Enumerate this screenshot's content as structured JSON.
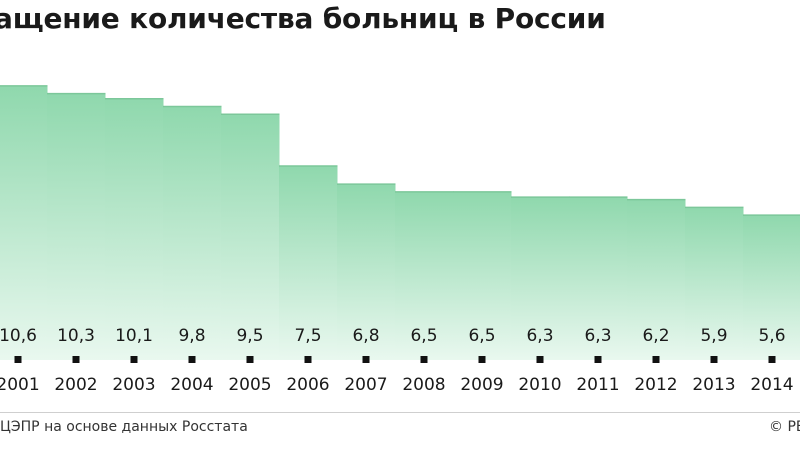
{
  "chart_data": {
    "type": "area",
    "title": "ащение количества больниц в России",
    "xlabel": "",
    "ylabel": "",
    "ylim": [
      0,
      11.6
    ],
    "grid": false,
    "legend": "none",
    "categories": [
      "2001",
      "2002",
      "2003",
      "2004",
      "2005",
      "2006",
      "2007",
      "2008",
      "2009",
      "2010",
      "2011",
      "2012",
      "2013",
      "2014"
    ],
    "values": [
      10.6,
      10.3,
      10.1,
      9.8,
      9.5,
      7.5,
      6.8,
      6.5,
      6.5,
      6.3,
      6.3,
      6.2,
      5.9,
      5.6
    ],
    "value_labels": [
      "10,6",
      "10,3",
      "10,1",
      "9,8",
      "9,5",
      "7,5",
      "6,8",
      "6,5",
      "6,5",
      "6,3",
      "6,3",
      "6,2",
      "5,9",
      "5,6"
    ],
    "colors": {
      "fill_top": "#8fd8ad",
      "fill_bottom": "#e9f8ef",
      "edge": "#7cc79a",
      "text": "#1a1a1a"
    }
  },
  "footer": {
    "source": "ЦЭПР на основе данных Росстата",
    "copyright": "© РБ"
  }
}
